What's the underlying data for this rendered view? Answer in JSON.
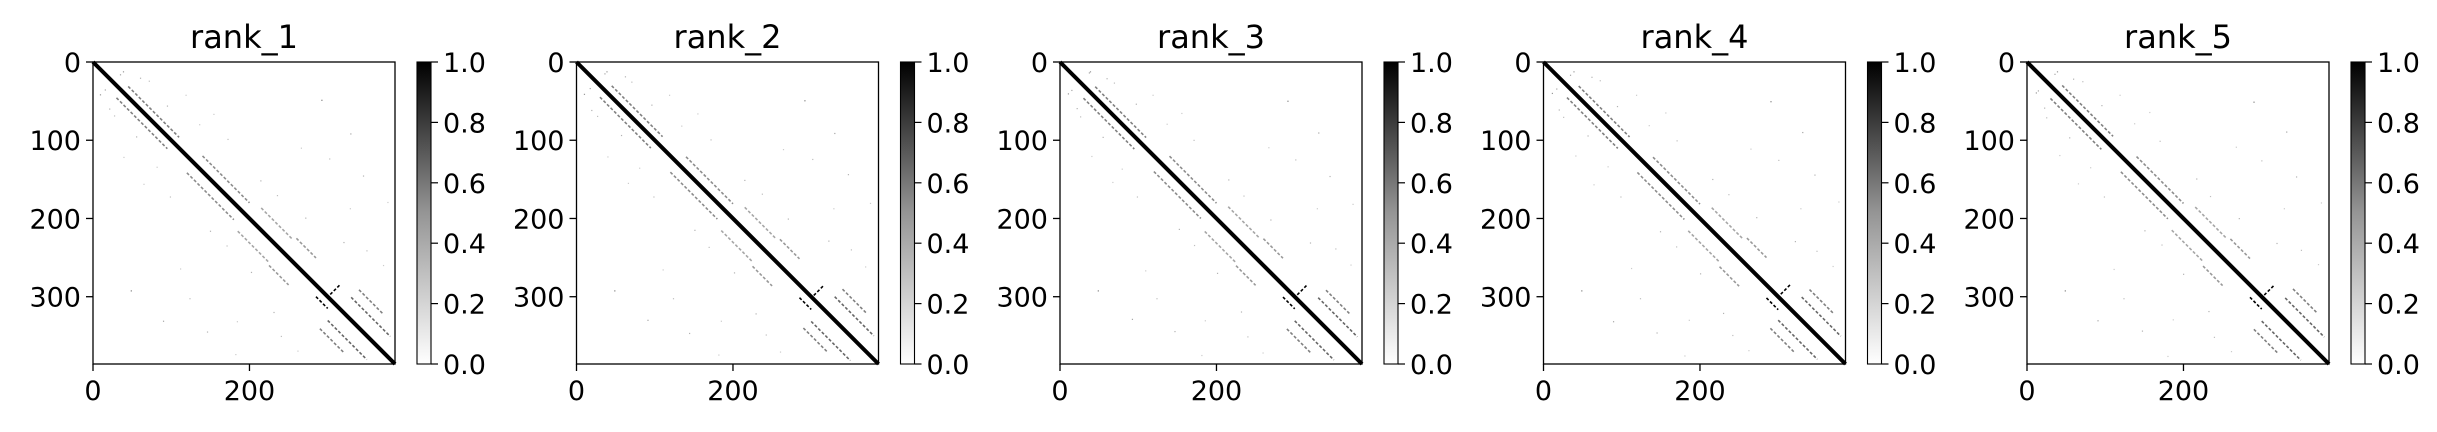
{
  "chart_data": [
    {
      "type": "heatmap",
      "title": "rank_1",
      "xlim": [
        0,
        386
      ],
      "ylim": [
        386,
        0
      ],
      "xticks": [
        0,
        200
      ],
      "yticks": [
        0,
        100,
        200,
        300
      ],
      "colorbar": {
        "range": [
          0.0,
          1.0
        ],
        "ticks": [
          0.0,
          0.2,
          0.4,
          0.6,
          0.8,
          1.0
        ],
        "cmap": "Greys"
      },
      "matrix_size": 386
    },
    {
      "type": "heatmap",
      "title": "rank_2",
      "xlim": [
        0,
        386
      ],
      "ylim": [
        386,
        0
      ],
      "xticks": [
        0,
        200
      ],
      "yticks": [
        0,
        100,
        200,
        300
      ],
      "colorbar": {
        "range": [
          0.0,
          1.0
        ],
        "ticks": [
          0.0,
          0.2,
          0.4,
          0.6,
          0.8,
          1.0
        ],
        "cmap": "Greys"
      },
      "matrix_size": 386
    },
    {
      "type": "heatmap",
      "title": "rank_3",
      "xlim": [
        0,
        386
      ],
      "ylim": [
        386,
        0
      ],
      "xticks": [
        0,
        200
      ],
      "yticks": [
        0,
        100,
        200,
        300
      ],
      "colorbar": {
        "range": [
          0.0,
          1.0
        ],
        "ticks": [
          0.0,
          0.2,
          0.4,
          0.6,
          0.8,
          1.0
        ],
        "cmap": "Greys"
      },
      "matrix_size": 386
    },
    {
      "type": "heatmap",
      "title": "rank_4",
      "xlim": [
        0,
        386
      ],
      "ylim": [
        386,
        0
      ],
      "xticks": [
        0,
        200
      ],
      "yticks": [
        0,
        100,
        200,
        300
      ],
      "colorbar": {
        "range": [
          0.0,
          1.0
        ],
        "ticks": [
          0.0,
          0.2,
          0.4,
          0.6,
          0.8,
          1.0
        ],
        "cmap": "Greys"
      },
      "matrix_size": 386
    },
    {
      "type": "heatmap",
      "title": "rank_5",
      "xlim": [
        0,
        386
      ],
      "ylim": [
        386,
        0
      ],
      "xticks": [
        0,
        200
      ],
      "yticks": [
        0,
        100,
        200,
        300
      ],
      "colorbar": {
        "range": [
          0.0,
          1.0
        ],
        "ticks": [
          0.0,
          0.2,
          0.4,
          0.6,
          0.8,
          1.0
        ],
        "cmap": "Greys"
      },
      "matrix_size": 386
    }
  ],
  "contact_pattern": {
    "main_diagonal_value": 1.0,
    "segments": [
      {
        "cells": [
          [
            300,
            285
          ],
          [
            315,
            300
          ]
        ],
        "value": 1.0
      },
      {
        "cells": [
          [
            285,
            315
          ],
          [
            300,
            300
          ]
        ],
        "value": 1.0
      },
      {
        "cells": [
          [
            45,
            30
          ],
          [
            110,
            95
          ]
        ],
        "value": 0.5
      },
      {
        "cells": [
          [
            30,
            45
          ],
          [
            95,
            110
          ]
        ],
        "value": 0.5
      },
      {
        "cells": [
          [
            140,
            120
          ],
          [
            200,
            180
          ]
        ],
        "value": 0.45
      },
      {
        "cells": [
          [
            120,
            140
          ],
          [
            180,
            200
          ]
        ],
        "value": 0.45
      },
      {
        "cells": [
          [
            330,
            300
          ],
          [
            380,
            350
          ]
        ],
        "value": 0.6
      },
      {
        "cells": [
          [
            300,
            330
          ],
          [
            350,
            380
          ]
        ],
        "value": 0.6
      },
      {
        "cells": [
          [
            215,
            185
          ],
          [
            255,
            225
          ]
        ],
        "value": 0.35
      },
      {
        "cells": [
          [
            185,
            215
          ],
          [
            225,
            255
          ]
        ],
        "value": 0.35
      },
      {
        "cells": [
          [
            260,
            225
          ],
          [
            285,
            250
          ]
        ],
        "value": 0.4
      },
      {
        "cells": [
          [
            225,
            260
          ],
          [
            250,
            285
          ]
        ],
        "value": 0.4
      },
      {
        "cells": [
          [
            340,
            290
          ],
          [
            370,
            320
          ]
        ],
        "value": 0.5
      },
      {
        "cells": [
          [
            290,
            340
          ],
          [
            320,
            370
          ]
        ],
        "value": 0.5
      }
    ],
    "scatter": [
      [
        20,
        60,
        0.3
      ],
      [
        60,
        20,
        0.3
      ],
      [
        25,
        70,
        0.25
      ],
      [
        70,
        25,
        0.25
      ],
      [
        40,
        120,
        0.2
      ],
      [
        120,
        40,
        0.2
      ],
      [
        55,
        95,
        0.3
      ],
      [
        95,
        55,
        0.3
      ],
      [
        80,
        135,
        0.2
      ],
      [
        135,
        80,
        0.2
      ],
      [
        100,
        170,
        0.25
      ],
      [
        170,
        100,
        0.25
      ],
      [
        150,
        215,
        0.3
      ],
      [
        215,
        150,
        0.3
      ],
      [
        170,
        235,
        0.25
      ],
      [
        235,
        170,
        0.25
      ],
      [
        200,
        270,
        0.3
      ],
      [
        270,
        200,
        0.3
      ],
      [
        185,
        330,
        0.2
      ],
      [
        330,
        185,
        0.2
      ],
      [
        240,
        350,
        0.25
      ],
      [
        350,
        240,
        0.25
      ],
      [
        260,
        370,
        0.2
      ],
      [
        370,
        260,
        0.2
      ],
      [
        50,
        290,
        0.5
      ],
      [
        290,
        50,
        0.5
      ],
      [
        90,
        330,
        0.35
      ],
      [
        330,
        90,
        0.35
      ],
      [
        145,
        345,
        0.3
      ],
      [
        345,
        145,
        0.3
      ],
      [
        180,
        375,
        0.2
      ],
      [
        375,
        180,
        0.2
      ],
      [
        10,
        40,
        0.4
      ],
      [
        40,
        10,
        0.4
      ],
      [
        15,
        35,
        0.35
      ],
      [
        35,
        15,
        0.35
      ],
      [
        110,
        265,
        0.2
      ],
      [
        265,
        110,
        0.2
      ],
      [
        125,
        300,
        0.25
      ],
      [
        300,
        125,
        0.25
      ],
      [
        65,
        155,
        0.2
      ],
      [
        155,
        65,
        0.2
      ],
      [
        230,
        320,
        0.3
      ],
      [
        320,
        230,
        0.3
      ]
    ]
  }
}
